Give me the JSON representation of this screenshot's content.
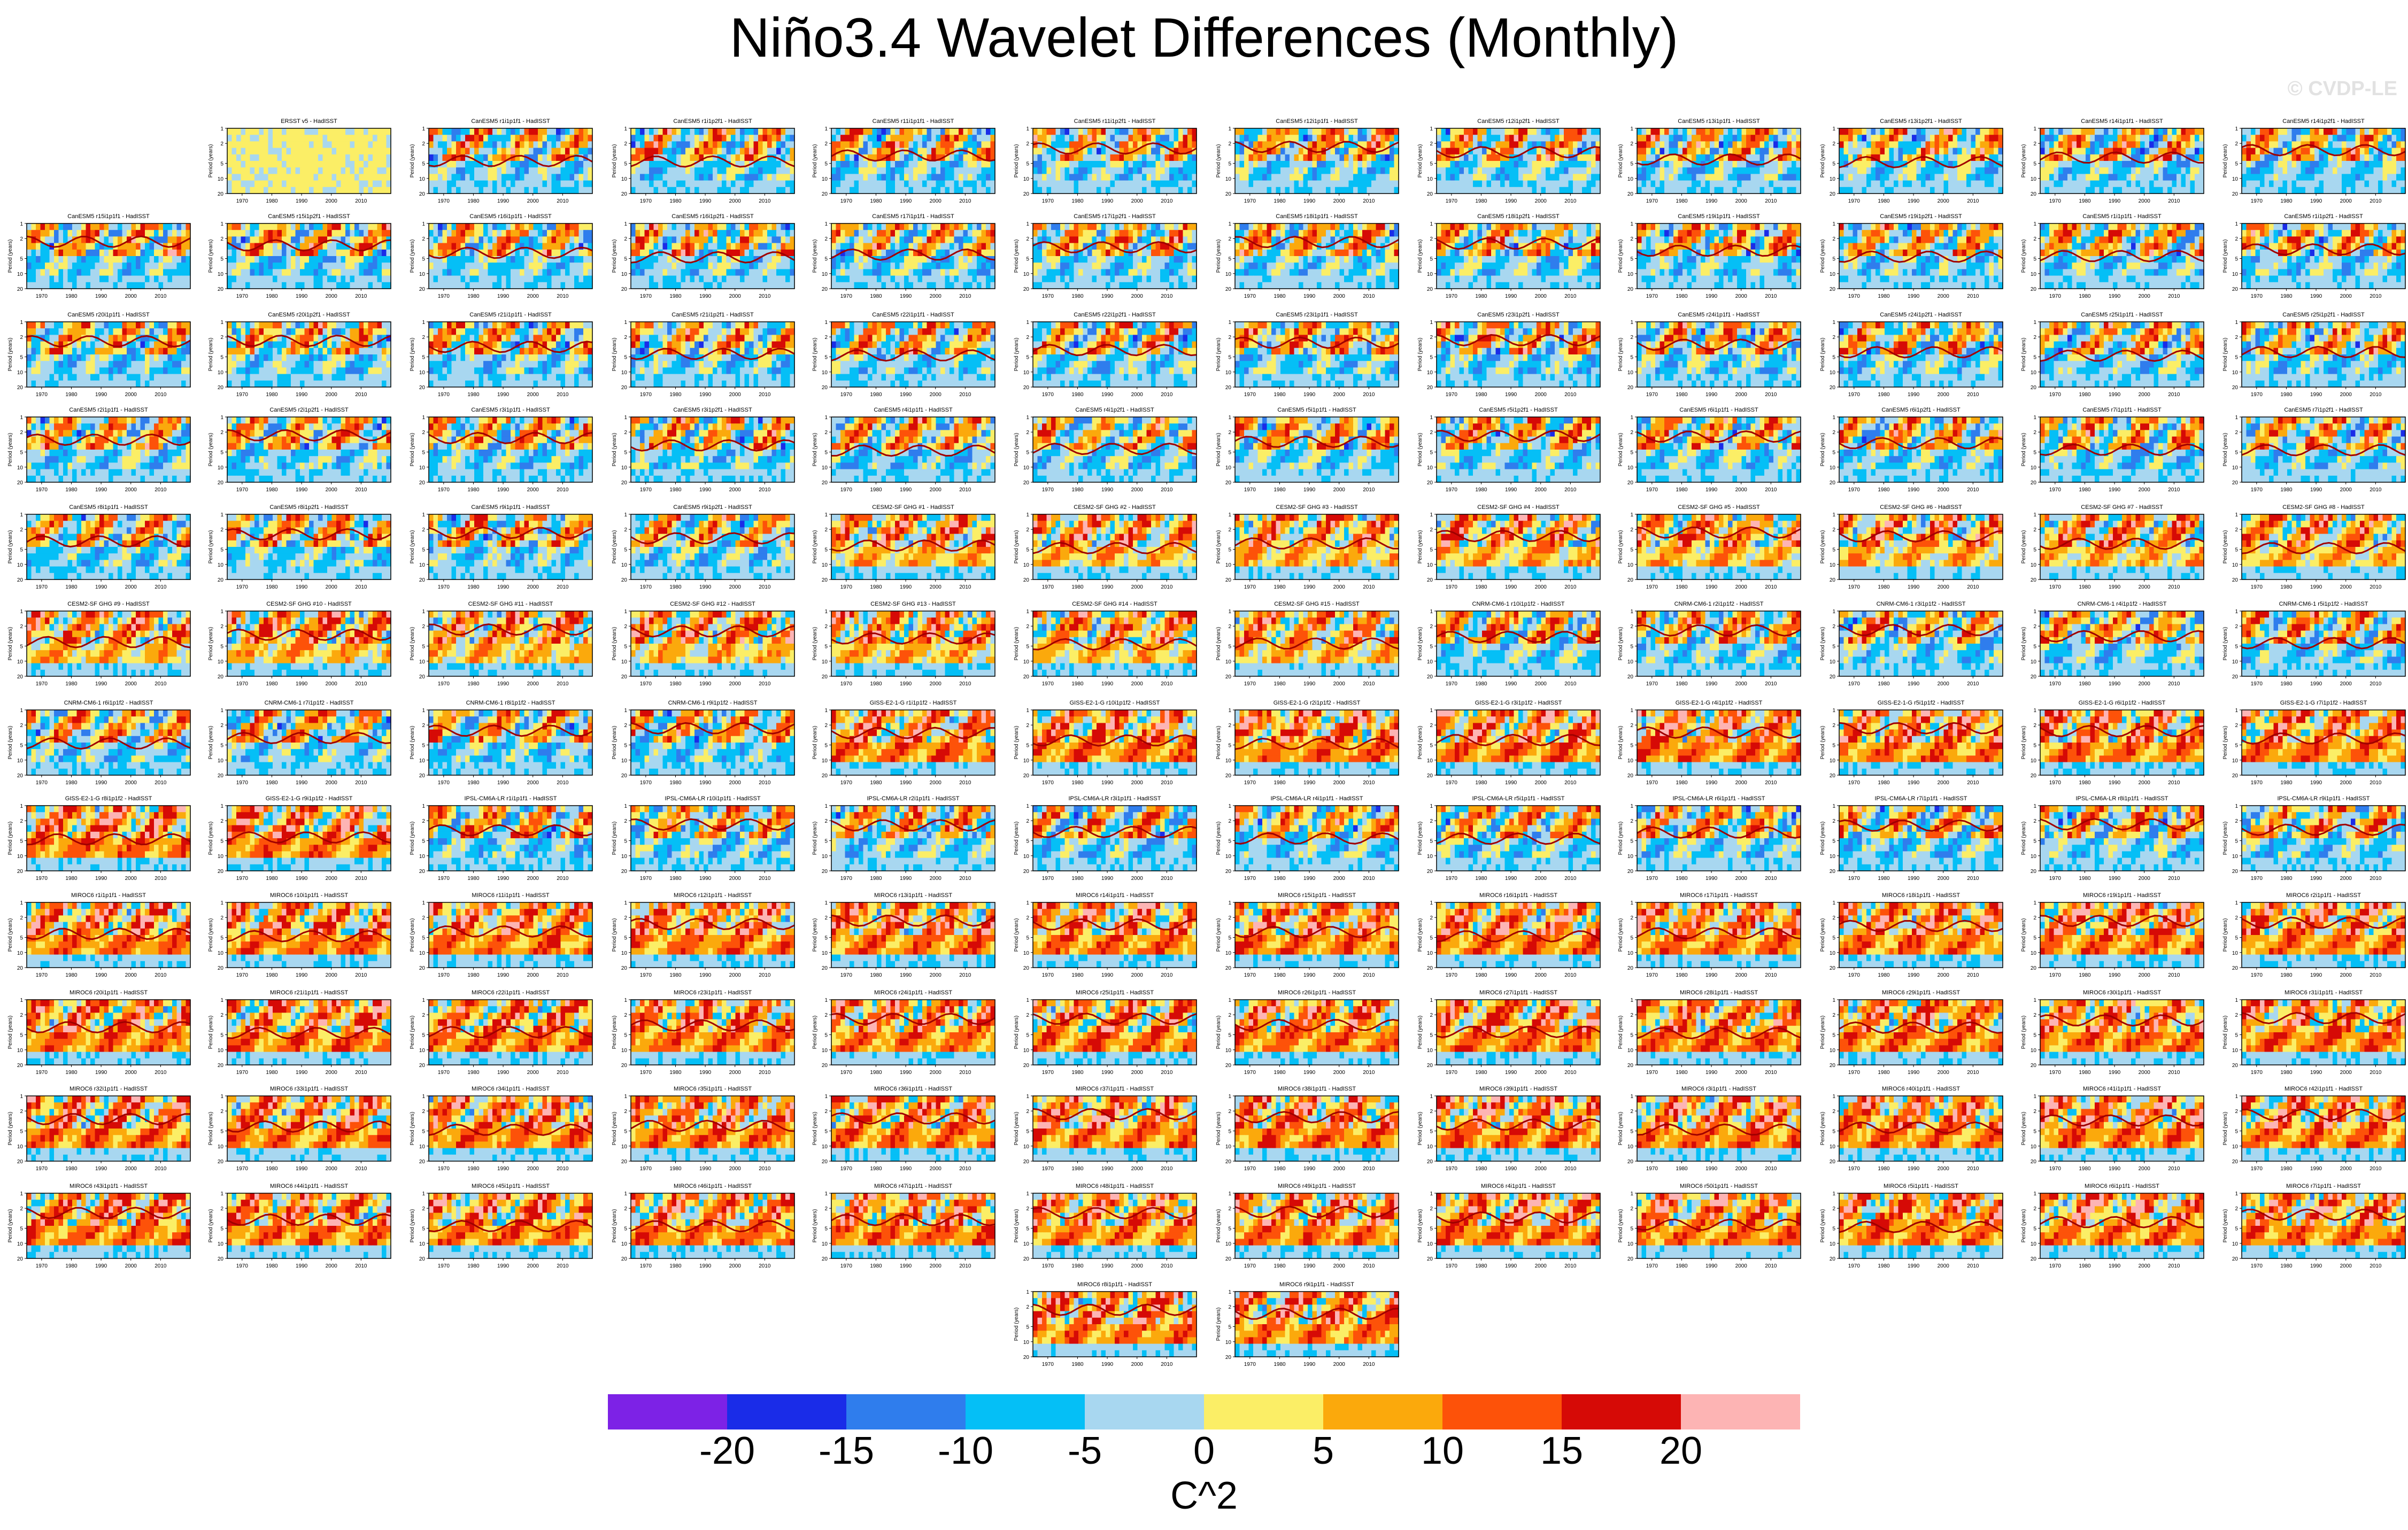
{
  "page": {
    "title": "Niño3.4 Wavelet Differences (Monthly)",
    "watermark": "© CVDP-LE"
  },
  "chart_data": {
    "type": "heatmap",
    "title": "Niño3.4 Wavelet Differences (Monthly)",
    "panel_ylabel": "Period (years)",
    "panel_yticks": [
      1,
      2,
      5,
      10,
      20
    ],
    "panel_xticks": [
      1970,
      1980,
      1990,
      2000,
      2010
    ],
    "panel_xlim": [
      1965,
      2020
    ],
    "colorbar": {
      "label": "C^2",
      "levels": [
        -20,
        -15,
        -10,
        -5,
        0,
        5,
        10,
        15,
        20
      ],
      "colors": [
        "#7d22e6",
        "#1a2ce8",
        "#2f7ded",
        "#05bff6",
        "#a8d7f0",
        "#fbee66",
        "#fba90c",
        "#fd5209",
        "#d60a06",
        "#fdb4b4"
      ]
    },
    "panels": [
      "ERSST v5 - HadISST",
      "CanESM5 r1i1p1f1 - HadISST",
      "CanESM5 r1i1p2f1 - HadISST",
      "CanESM5 r11i1p1f1 - HadISST",
      "CanESM5 r11i1p2f1 - HadISST",
      "CanESM5 r12i1p1f1 - HadISST",
      "CanESM5 r12i1p2f1 - HadISST",
      "CanESM5 r13i1p1f1 - HadISST",
      "CanESM5 r13i1p2f1 - HadISST",
      "CanESM5 r14i1p1f1 - HadISST",
      "CanESM5 r14i1p2f1 - HadISST",
      "CanESM5 r15i1p1f1 - HadISST",
      "CanESM5 r15i1p2f1 - HadISST",
      "CanESM5 r16i1p1f1 - HadISST",
      "CanESM5 r16i1p2f1 - HadISST",
      "CanESM5 r17i1p1f1 - HadISST",
      "CanESM5 r17i1p2f1 - HadISST",
      "CanESM5 r18i1p1f1 - HadISST",
      "CanESM5 r18i1p2f1 - HadISST",
      "CanESM5 r19i1p1f1 - HadISST",
      "CanESM5 r19i1p2f1 - HadISST",
      "CanESM5 r1i1p1f1 - HadISST",
      "CanESM5 r1i1p2f1 - HadISST",
      "CanESM5 r20i1p1f1 - HadISST",
      "CanESM5 r20i1p2f1 - HadISST",
      "CanESM5 r21i1p1f1 - HadISST",
      "CanESM5 r21i1p2f1 - HadISST",
      "CanESM5 r22i1p1f1 - HadISST",
      "CanESM5 r22i1p2f1 - HadISST",
      "CanESM5 r23i1p1f1 - HadISST",
      "CanESM5 r23i1p2f1 - HadISST",
      "CanESM5 r24i1p1f1 - HadISST",
      "CanESM5 r24i1p2f1 - HadISST",
      "CanESM5 r25i1p1f1 - HadISST",
      "CanESM5 r25i1p2f1 - HadISST",
      "CanESM5 r2i1p1f1 - HadISST",
      "CanESM5 r2i1p2f1 - HadISST",
      "CanESM5 r3i1p1f1 - HadISST",
      "CanESM5 r3i1p2f1 - HadISST",
      "CanESM5 r4i1p1f1 - HadISST",
      "CanESM5 r4i1p2f1 - HadISST",
      "CanESM5 r5i1p1f1 - HadISST",
      "CanESM5 r5i1p2f1 - HadISST",
      "CanESM5 r6i1p1f1 - HadISST",
      "CanESM5 r6i1p2f1 - HadISST",
      "CanESM5 r7i1p1f1 - HadISST",
      "CanESM5 r7i1p2f1 - HadISST",
      "CanESM5 r8i1p1f1 - HadISST",
      "CanESM5 r8i1p2f1 - HadISST",
      "CanESM5 r9i1p1f1 - HadISST",
      "CanESM5 r9i1p2f1 - HadISST",
      "CESM2-SF GHG #1 - HadISST",
      "CESM2-SF GHG #2 - HadISST",
      "CESM2-SF GHG #3 - HadISST",
      "CESM2-SF GHG #4 - HadISST",
      "CESM2-SF GHG #5 - HadISST",
      "CESM2-SF GHG #6 - HadISST",
      "CESM2-SF GHG #7 - HadISST",
      "CESM2-SF GHG #8 - HadISST",
      "CESM2-SF GHG #9 - HadISST",
      "CESM2-SF GHG #10 - HadISST",
      "CESM2-SF GHG #11 - HadISST",
      "CESM2-SF GHG #12 - HadISST",
      "CESM2-SF GHG #13 - HadISST",
      "CESM2-SF GHG #14 - HadISST",
      "CESM2-SF GHG #15 - HadISST",
      "CNRM-CM6-1 r10i1p1f2 - HadISST",
      "CNRM-CM6-1 r2i1p1f2 - HadISST",
      "CNRM-CM6-1 r3i1p1f2 - HadISST",
      "CNRM-CM6-1 r4i1p1f2 - HadISST",
      "CNRM-CM6-1 r5i1p1f2 - HadISST",
      "CNRM-CM6-1 r6i1p1f2 - HadISST",
      "CNRM-CM6-1 r7i1p1f2 - HadISST",
      "CNRM-CM6-1 r8i1p1f2 - HadISST",
      "CNRM-CM6-1 r9i1p1f2 - HadISST",
      "GISS-E2-1-G r1i1p1f2 - HadISST",
      "GISS-E2-1-G r10i1p1f2 - HadISST",
      "GISS-E2-1-G r2i1p1f2 - HadISST",
      "GISS-E2-1-G r3i1p1f2 - HadISST",
      "GISS-E2-1-G r4i1p1f2 - HadISST",
      "GISS-E2-1-G r5i1p1f2 - HadISST",
      "GISS-E2-1-G r6i1p1f2 - HadISST",
      "GISS-E2-1-G r7i1p1f2 - HadISST",
      "GISS-E2-1-G r8i1p1f2 - HadISST",
      "GISS-E2-1-G r9i1p1f2 - HadISST",
      "IPSL-CM6A-LR r1i1p1f1 - HadISST",
      "IPSL-CM6A-LR r10i1p1f1 - HadISST",
      "IPSL-CM6A-LR r2i1p1f1 - HadISST",
      "IPSL-CM6A-LR r3i1p1f1 - HadISST",
      "IPSL-CM6A-LR r4i1p1f1 - HadISST",
      "IPSL-CM6A-LR r5i1p1f1 - HadISST",
      "IPSL-CM6A-LR r6i1p1f1 - HadISST",
      "IPSL-CM6A-LR r7i1p1f1 - HadISST",
      "IPSL-CM6A-LR r8i1p1f1 - HadISST",
      "IPSL-CM6A-LR r9i1p1f1 - HadISST",
      "MIROC6 r1i1p1f1 - HadISST",
      "MIROC6 r10i1p1f1 - HadISST",
      "MIROC6 r11i1p1f1 - HadISST",
      "MIROC6 r12i1p1f1 - HadISST",
      "MIROC6 r13i1p1f1 - HadISST",
      "MIROC6 r14i1p1f1 - HadISST",
      "MIROC6 r15i1p1f1 - HadISST",
      "MIROC6 r16i1p1f1 - HadISST",
      "MIROC6 r17i1p1f1 - HadISST",
      "MIROC6 r18i1p1f1 - HadISST",
      "MIROC6 r19i1p1f1 - HadISST",
      "MIROC6 r2i1p1f1 - HadISST",
      "MIROC6 r20i1p1f1 - HadISST",
      "MIROC6 r21i1p1f1 - HadISST",
      "MIROC6 r22i1p1f1 - HadISST",
      "MIROC6 r23i1p1f1 - HadISST",
      "MIROC6 r24i1p1f1 - HadISST",
      "MIROC6 r25i1p1f1 - HadISST",
      "MIROC6 r26i1p1f1 - HadISST",
      "MIROC6 r27i1p1f1 - HadISST",
      "MIROC6 r28i1p1f1 - HadISST",
      "MIROC6 r29i1p1f1 - HadISST",
      "MIROC6 r30i1p1f1 - HadISST",
      "MIROC6 r31i1p1f1 - HadISST",
      "MIROC6 r32i1p1f1 - HadISST",
      "MIROC6 r33i1p1f1 - HadISST",
      "MIROC6 r34i1p1f1 - HadISST",
      "MIROC6 r35i1p1f1 - HadISST",
      "MIROC6 r36i1p1f1 - HadISST",
      "MIROC6 r37i1p1f1 - HadISST",
      "MIROC6 r38i1p1f1 - HadISST",
      "MIROC6 r39i1p1f1 - HadISST",
      "MIROC6 r3i1p1f1 - HadISST",
      "MIROC6 r40i1p1f1 - HadISST",
      "MIROC6 r41i1p1f1 - HadISST",
      "MIROC6 r42i1p1f1 - HadISST",
      "MIROC6 r43i1p1f1 - HadISST",
      "MIROC6 r44i1p1f1 - HadISST",
      "MIROC6 r45i1p1f1 - HadISST",
      "MIROC6 r46i1p1f1 - HadISST",
      "MIROC6 r47i1p1f1 - HadISST",
      "MIROC6 r48i1p1f1 - HadISST",
      "MIROC6 r49i1p1f1 - HadISST",
      "MIROC6 r4i1p1f1 - HadISST",
      "MIROC6 r50i1p1f1 - HadISST",
      "MIROC6 r5i1p1f1 - HadISST",
      "MIROC6 r6i1p1f1 - HadISST",
      "MIROC6 r7i1p1f1 - HadISST",
      "MIROC6 r8i1p1f1 - HadISST",
      "MIROC6 r9i1p1f1 - HadISST"
    ]
  }
}
